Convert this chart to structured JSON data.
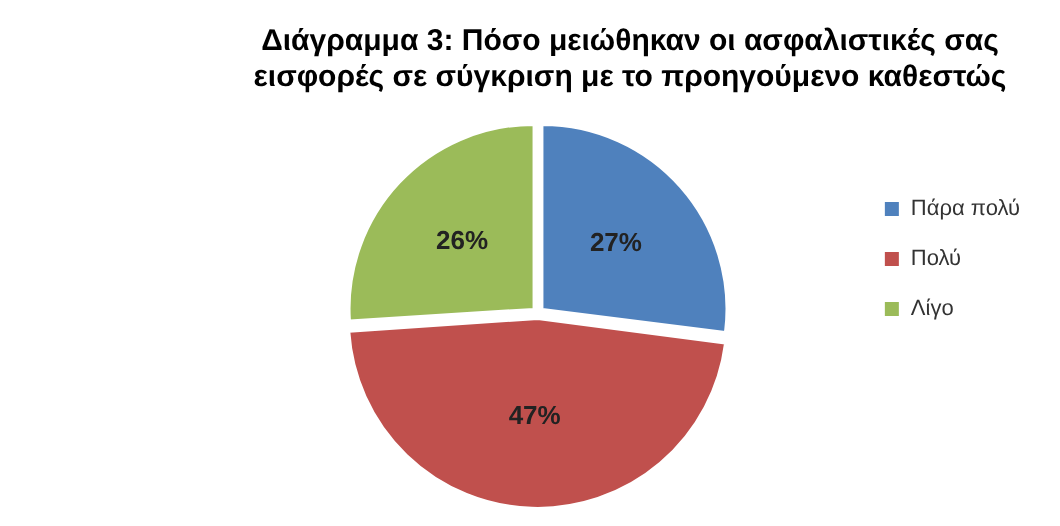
{
  "chart_data": {
    "type": "pie",
    "title": "Διάγραμμα 3: Πόσο μειώθηκαν οι ασφαλιστικές σας εισφορές σε σύγκριση με το προηγούμενο καθεστώς",
    "categories": [
      "Πάρα πολύ",
      "Πολύ",
      "Λίγο"
    ],
    "values": [
      27,
      47,
      26
    ],
    "value_labels": [
      "27%",
      "47%",
      "26%"
    ],
    "colors": [
      "#4f81bd",
      "#c0504d",
      "#9bbb59"
    ],
    "legend": "right"
  }
}
